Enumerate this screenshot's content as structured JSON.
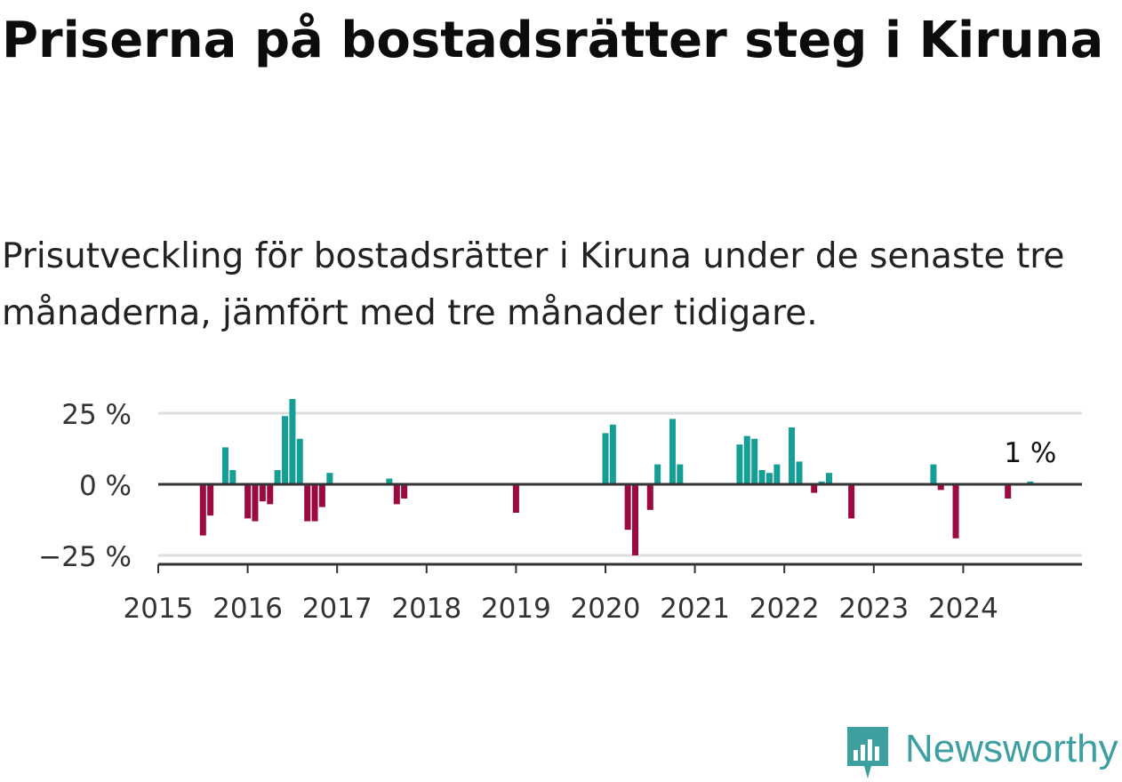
{
  "title": "Priserna på bostadsrätter steg i Kiruna",
  "subtitle": "Prisutveckling för bostadsrätter i Kiruna under de senaste tre månaderna, jämfört med tre månader tidigare.",
  "brand": "Newsworthy",
  "colors": {
    "positive": "#149e96",
    "negative": "#9b0a40",
    "axis": "#333333",
    "grid": "#dddddd",
    "brand": "#3e9fa0"
  },
  "chart_data": {
    "type": "bar",
    "ylabel": "",
    "xlabel": "",
    "ylim": [
      -28,
      30
    ],
    "y_ticks": [
      25,
      0,
      -25
    ],
    "y_tick_labels": [
      "25 %",
      "0 %",
      "−25 %"
    ],
    "x_domain": [
      2015,
      2025.25
    ],
    "x_ticks": [
      2015,
      2016,
      2017,
      2018,
      2019,
      2020,
      2021,
      2022,
      2023,
      2024
    ],
    "x_tick_labels": [
      "2015",
      "2016",
      "2017",
      "2018",
      "2019",
      "2020",
      "2021",
      "2022",
      "2023",
      "2024"
    ],
    "annotation": "1 %",
    "series": [
      {
        "name": "Prisutveckling",
        "x": [
          2015.5,
          2015.583,
          2015.75,
          2015.833,
          2016.0,
          2016.083,
          2016.167,
          2016.25,
          2016.333,
          2016.417,
          2016.5,
          2016.583,
          2016.667,
          2016.75,
          2016.833,
          2016.917,
          2017.583,
          2017.667,
          2017.75,
          2019.0,
          2020.0,
          2020.083,
          2020.25,
          2020.333,
          2020.5,
          2020.583,
          2020.75,
          2020.833,
          2021.5,
          2021.583,
          2021.667,
          2021.75,
          2021.833,
          2021.917,
          2022.083,
          2022.167,
          2022.333,
          2022.417,
          2022.5,
          2022.75,
          2023.667,
          2023.75,
          2023.917,
          2024.5,
          2024.75
        ],
        "values": [
          -18,
          -11,
          13,
          5,
          -12,
          -13,
          -6,
          -7,
          5,
          24,
          30,
          16,
          -13,
          -13,
          -8,
          4,
          2,
          -7,
          -5,
          -10,
          18,
          21,
          -16,
          -25,
          -9,
          7,
          23,
          7,
          14,
          17,
          16,
          5,
          4,
          7,
          20,
          8,
          -3,
          1,
          4,
          -12,
          7,
          -2,
          -19,
          -5,
          1
        ]
      }
    ]
  }
}
